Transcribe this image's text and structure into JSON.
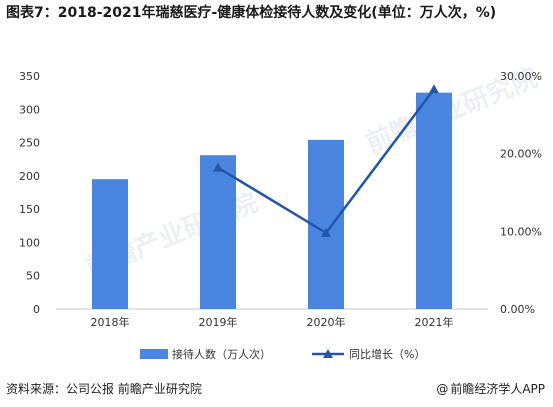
{
  "title": "图表7：2018-2021年瑞慈医疗-健康体检接待人数及变化(单位：万人次，%)",
  "watermark": "前瞻产业研究院",
  "footer": {
    "source": "资料来源：公司公报 前瞻产业研究院",
    "brand": "前瞻经济学人APP",
    "brand_symbol": "@"
  },
  "colors": {
    "bar": "#4a86e0",
    "line": "#2356a8",
    "axis": "#c8c8c8"
  },
  "chart_data": {
    "type": "bar",
    "title": "图表7：2018-2021年瑞慈医疗-健康体检接待人数及变化(单位：万人次，%)",
    "categories": [
      "2018年",
      "2019年",
      "2020年",
      "2021年"
    ],
    "series": [
      {
        "name": "接待人数（万人次）",
        "type": "bar",
        "axis": "left",
        "values": [
          195,
          231,
          254,
          325
        ]
      },
      {
        "name": "同比增长（%）",
        "type": "line",
        "axis": "right",
        "values": [
          null,
          18.2,
          9.8,
          28.3
        ]
      }
    ],
    "y_left": {
      "min": 0,
      "max": 350,
      "ticks": [
        0,
        50,
        100,
        150,
        200,
        250,
        300,
        350
      ]
    },
    "y_right": {
      "min": 0,
      "max": 30,
      "ticks": [
        "0.00%",
        "10.00%",
        "20.00%",
        "30.00%"
      ]
    },
    "legend_position": "bottom",
    "grid": false
  }
}
